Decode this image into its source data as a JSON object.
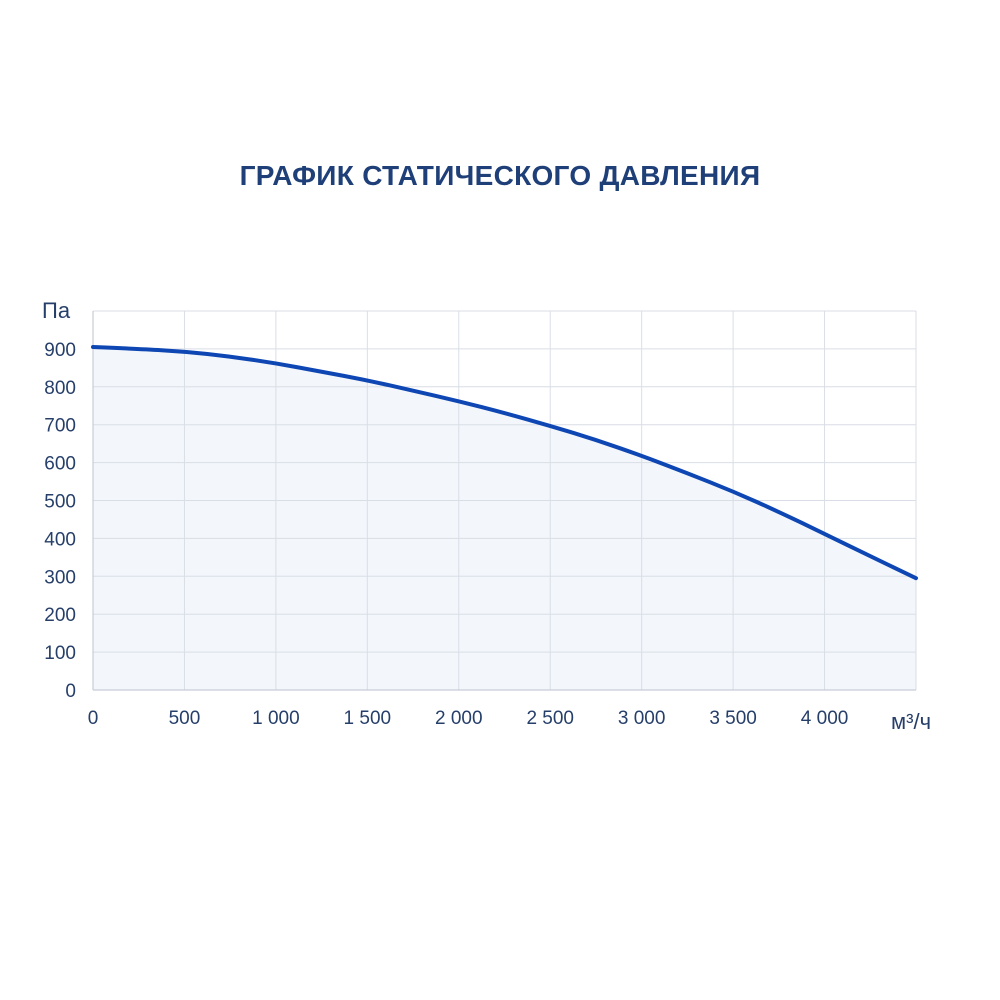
{
  "chart_data": {
    "type": "area",
    "title": "ГРАФИК СТАТИЧЕСКОГО ДАВЛЕНИЯ",
    "xlabel": "м³/ч",
    "ylabel": "Па",
    "xlim": [
      0,
      4500
    ],
    "ylim": [
      0,
      1000
    ],
    "x_ticks": [
      0,
      500,
      1000,
      1500,
      2000,
      2500,
      3000,
      3500,
      4000
    ],
    "x_tick_labels": [
      "0",
      "500",
      "1 000",
      "1 500",
      "2 000",
      "2 500",
      "3 000",
      "3 500",
      "4 000"
    ],
    "y_ticks": [
      0,
      100,
      200,
      300,
      400,
      500,
      600,
      700,
      800,
      900
    ],
    "y_tick_labels": [
      "0",
      "100",
      "200",
      "300",
      "400",
      "500",
      "600",
      "700",
      "800",
      "900"
    ],
    "grid": true,
    "series": [
      {
        "x": [
          0,
          250,
          500,
          750,
          1000,
          1250,
          1500,
          1750,
          2000,
          2250,
          2500,
          2750,
          3000,
          3250,
          3500,
          3750,
          4000,
          4250,
          4500
        ],
        "values": [
          905,
          900,
          893,
          880,
          862,
          840,
          817,
          790,
          762,
          731,
          697,
          660,
          618,
          572,
          524,
          470,
          412,
          353,
          295
        ]
      }
    ],
    "colors": {
      "line": "#0e47b3",
      "fill": "#f3f6fb",
      "grid": "#d9dee6",
      "axis": "#c8cdd6"
    }
  }
}
